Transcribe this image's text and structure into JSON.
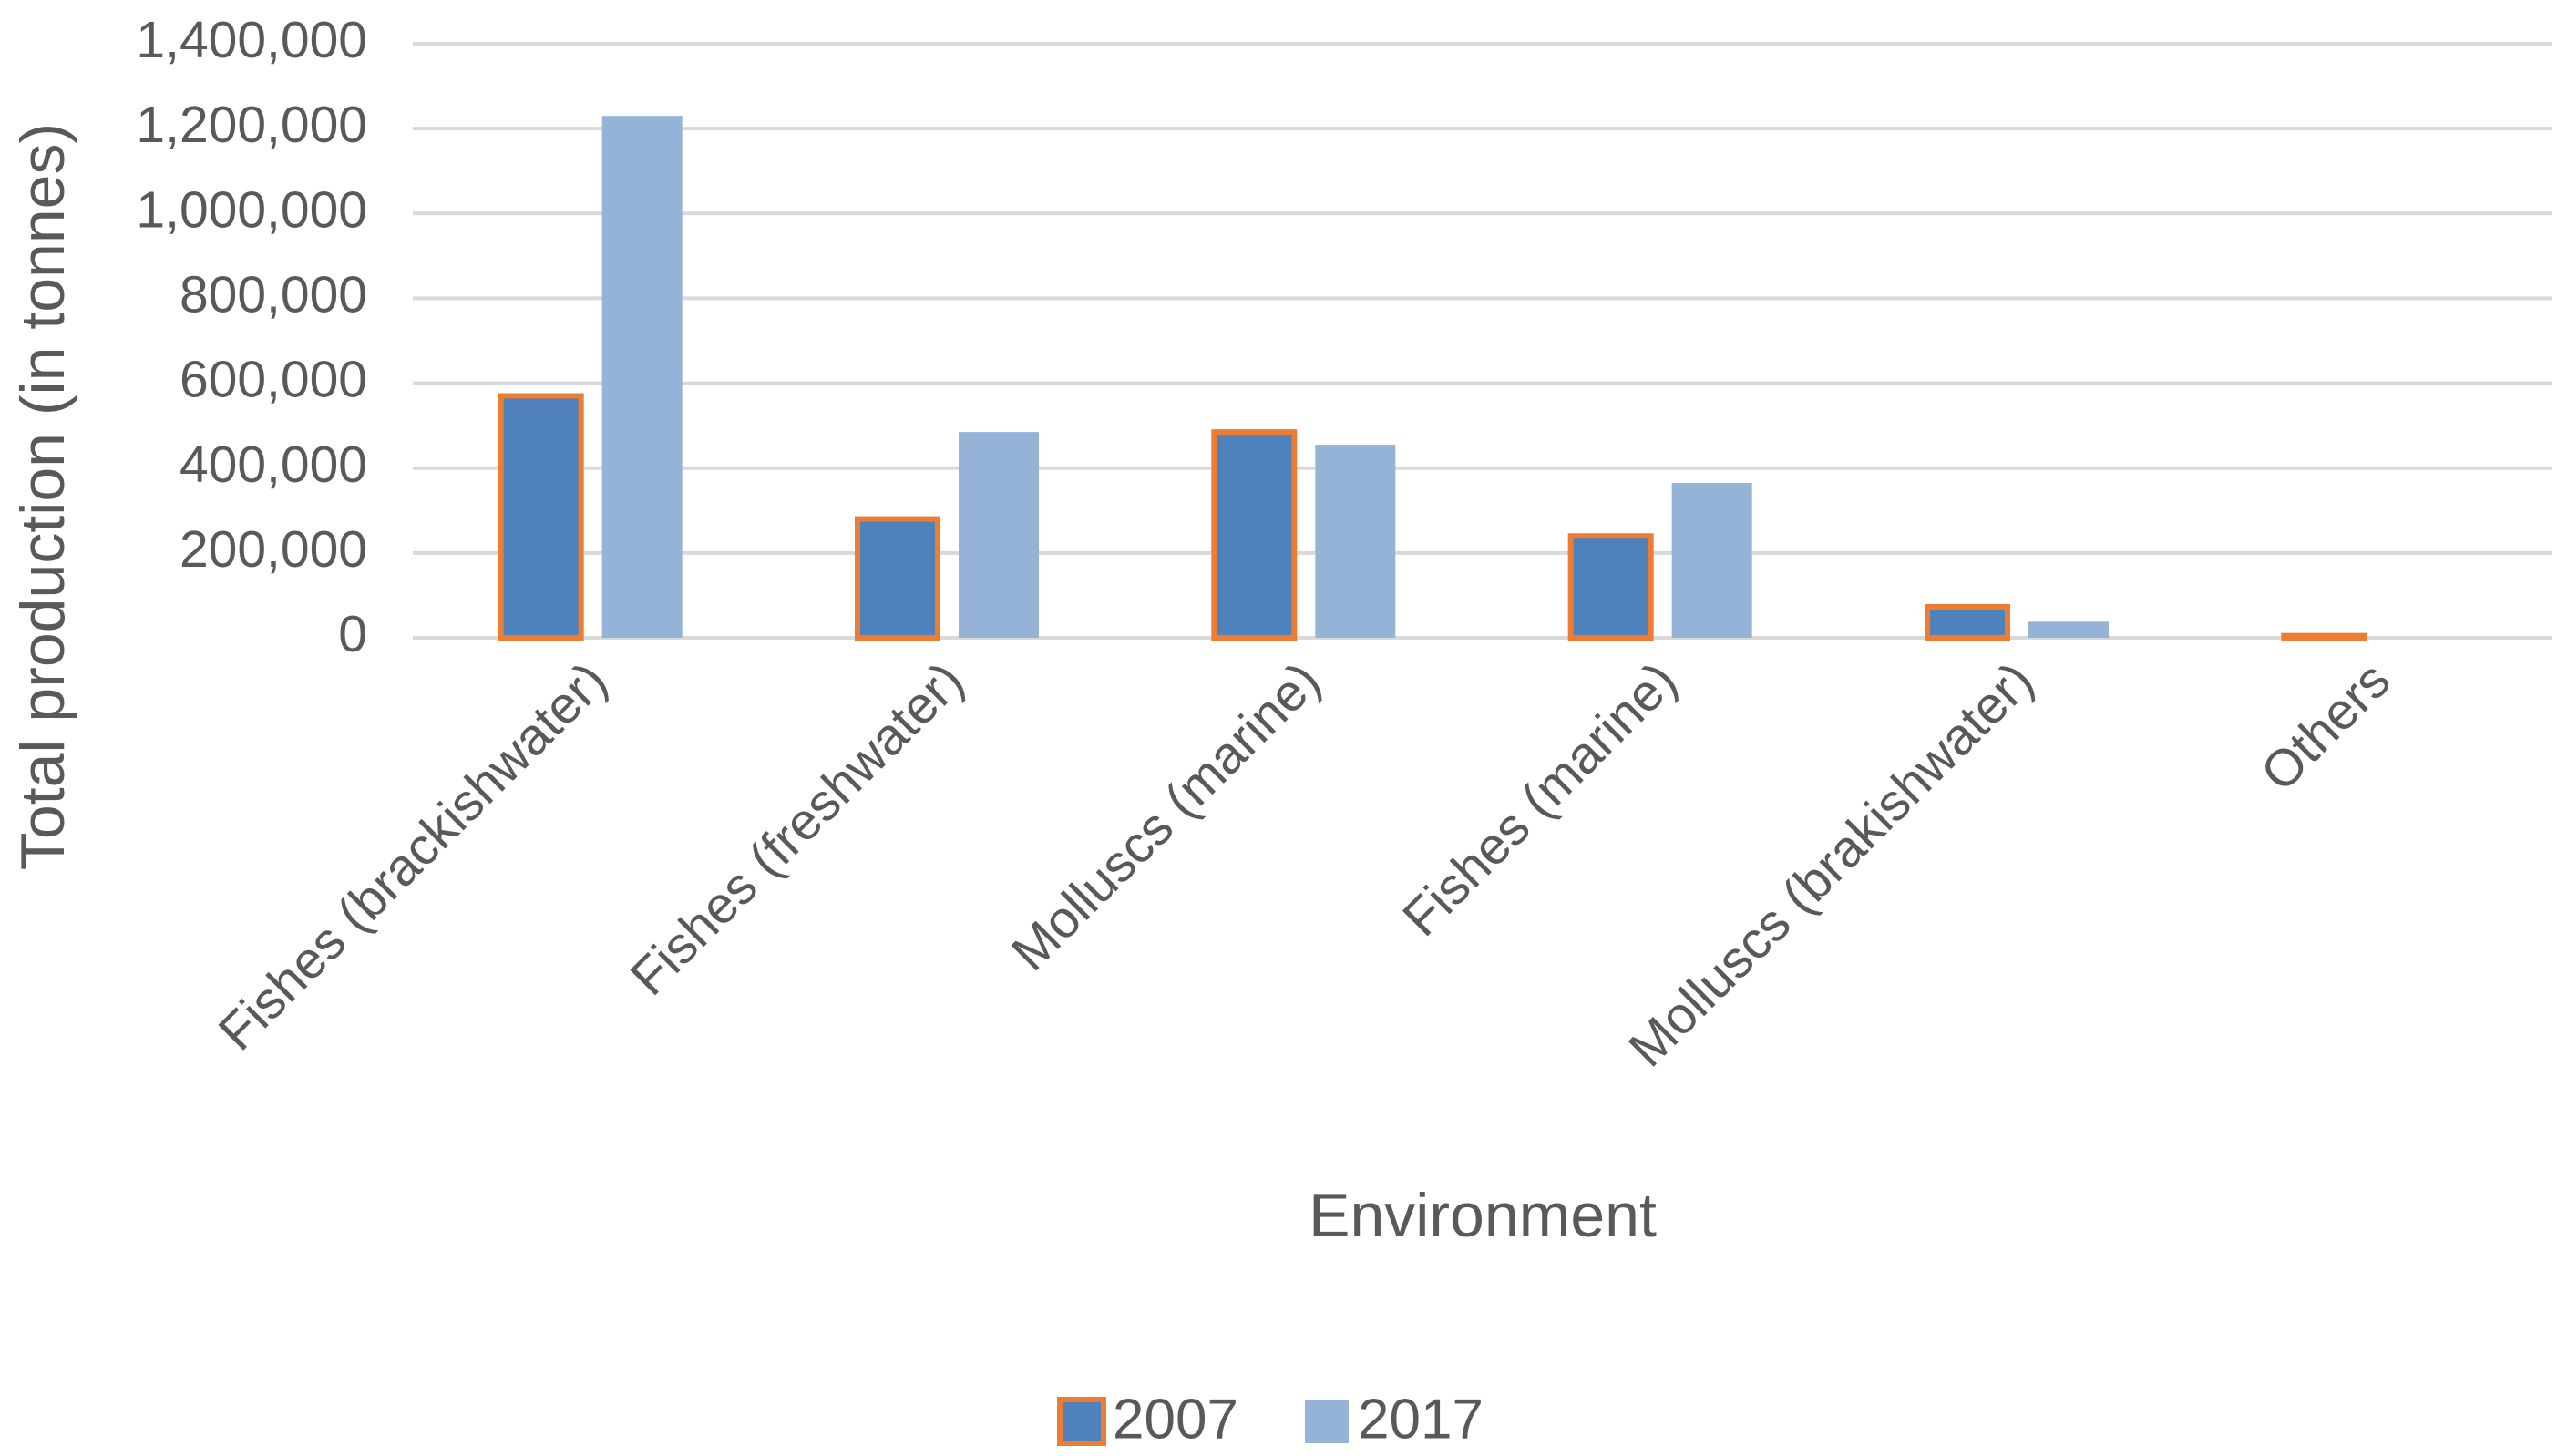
{
  "chart_data": {
    "type": "bar",
    "x_label": "Environment",
    "y_label": "Total production (in tonnes)",
    "categories": [
      "Fishes (brackishwater)",
      "Fishes (freshwater)",
      "Molluscs (marine)",
      "Fishes (marine)",
      "Molluscs (brakishwater)",
      "Others"
    ],
    "series": [
      {
        "name": "2007",
        "color": "#4f81bd",
        "edgecolor": "#ed7d31",
        "values": [
          570000,
          280000,
          485000,
          240000,
          73000,
          5000
        ]
      },
      {
        "name": "2017",
        "color": "#95b3d7",
        "values": [
          1230000,
          485000,
          455000,
          365000,
          38000,
          0
        ]
      }
    ],
    "ylim": [
      0,
      1400000
    ],
    "yticks": [
      0,
      {
        "value": 200000,
        "label": "200,000"
      },
      {
        "value": 400000,
        "label": "400,000"
      },
      {
        "value": 600000,
        "label": "600,000"
      },
      {
        "value": 800000,
        "label": "800,000"
      },
      {
        "value": 1000000,
        "label": "1,000,000"
      },
      {
        "value": 1200000,
        "label": "1,200,000"
      },
      {
        "value": 1400000,
        "label": "1,400,000"
      }
    ],
    "grid": true,
    "legend": "bottom"
  }
}
